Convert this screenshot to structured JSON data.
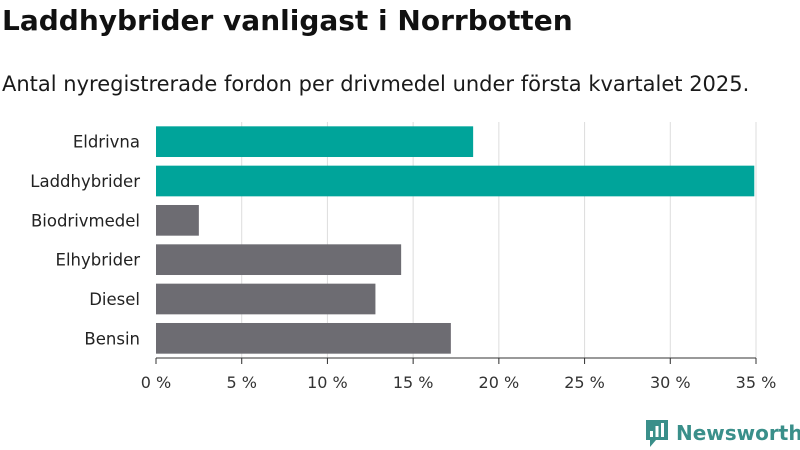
{
  "title": "Laddhybrider vanligast i Norrbotten",
  "subtitle": "Antal nyregistrerade fordon per drivmedel under första kvartalet 2025.",
  "brand": {
    "name": "Newsworthy",
    "icon": "newsworthy-logo-icon"
  },
  "colors": {
    "highlight": "#00a49a",
    "default": "#6d6c72",
    "grid": "#dddddd",
    "axis": "#333333"
  },
  "chart_data": {
    "type": "bar",
    "orientation": "horizontal",
    "categories": [
      "Eldrivna",
      "Laddhybrider",
      "Biodrivmedel",
      "Elhybrider",
      "Diesel",
      "Bensin"
    ],
    "values": [
      18.5,
      34.9,
      2.5,
      14.3,
      12.8,
      17.2
    ],
    "highlighted": [
      true,
      true,
      false,
      false,
      false,
      false
    ],
    "xlim": [
      0,
      35
    ],
    "xticks": [
      0,
      5,
      10,
      15,
      20,
      25,
      30,
      35
    ],
    "xtick_labels": [
      "0 %",
      "5 %",
      "10 %",
      "15 %",
      "20 %",
      "25 %",
      "30 %",
      "35 %"
    ],
    "grid": true,
    "legend": "none"
  }
}
